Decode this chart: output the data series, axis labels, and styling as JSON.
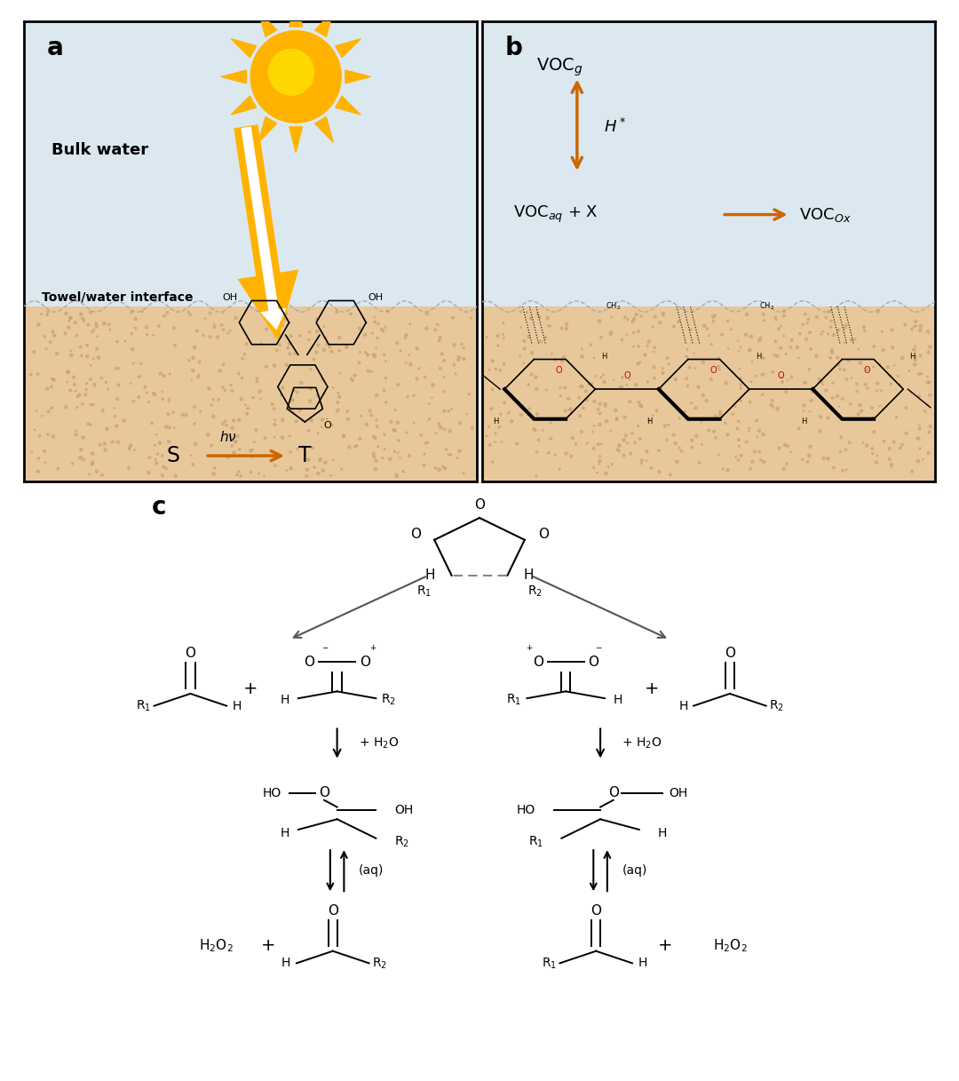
{
  "fig_width": 10.8,
  "fig_height": 12.17,
  "dpi": 100,
  "bg_color": "#ffffff",
  "arrow_color": "#CC6600",
  "sun_color": "#FFB300",
  "sun_inner_color": "#FFD700",
  "water_color": "#dce8f0",
  "towel_color": "#e8c89a",
  "towel_dot_color": "#c8a070",
  "black": "#000000",
  "red_color": "#cc0000",
  "gray_arrow": "#555555",
  "panel_a_label": "a",
  "panel_b_label": "b",
  "panel_c_label": "c"
}
